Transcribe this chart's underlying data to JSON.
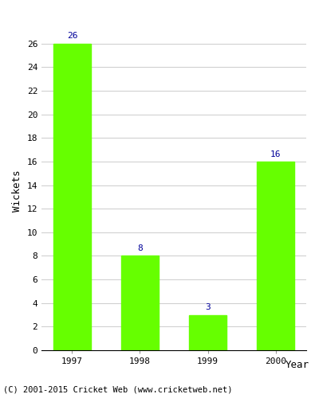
{
  "categories": [
    "1997",
    "1998",
    "1999",
    "2000"
  ],
  "values": [
    26,
    8,
    3,
    16
  ],
  "bar_color": "#66ff00",
  "label_color": "#000099",
  "xlabel": "Year",
  "ylabel": "Wickets",
  "ylim": [
    0,
    27
  ],
  "yticks": [
    0,
    2,
    4,
    6,
    8,
    10,
    12,
    14,
    16,
    18,
    20,
    22,
    24,
    26
  ],
  "grid_color": "#cccccc",
  "background_color": "#ffffff",
  "footer_text": "(C) 2001-2015 Cricket Web (www.cricketweb.net)",
  "label_fontsize": 8,
  "axis_label_fontsize": 9,
  "tick_fontsize": 8,
  "footer_fontsize": 7.5,
  "bar_width": 0.55
}
